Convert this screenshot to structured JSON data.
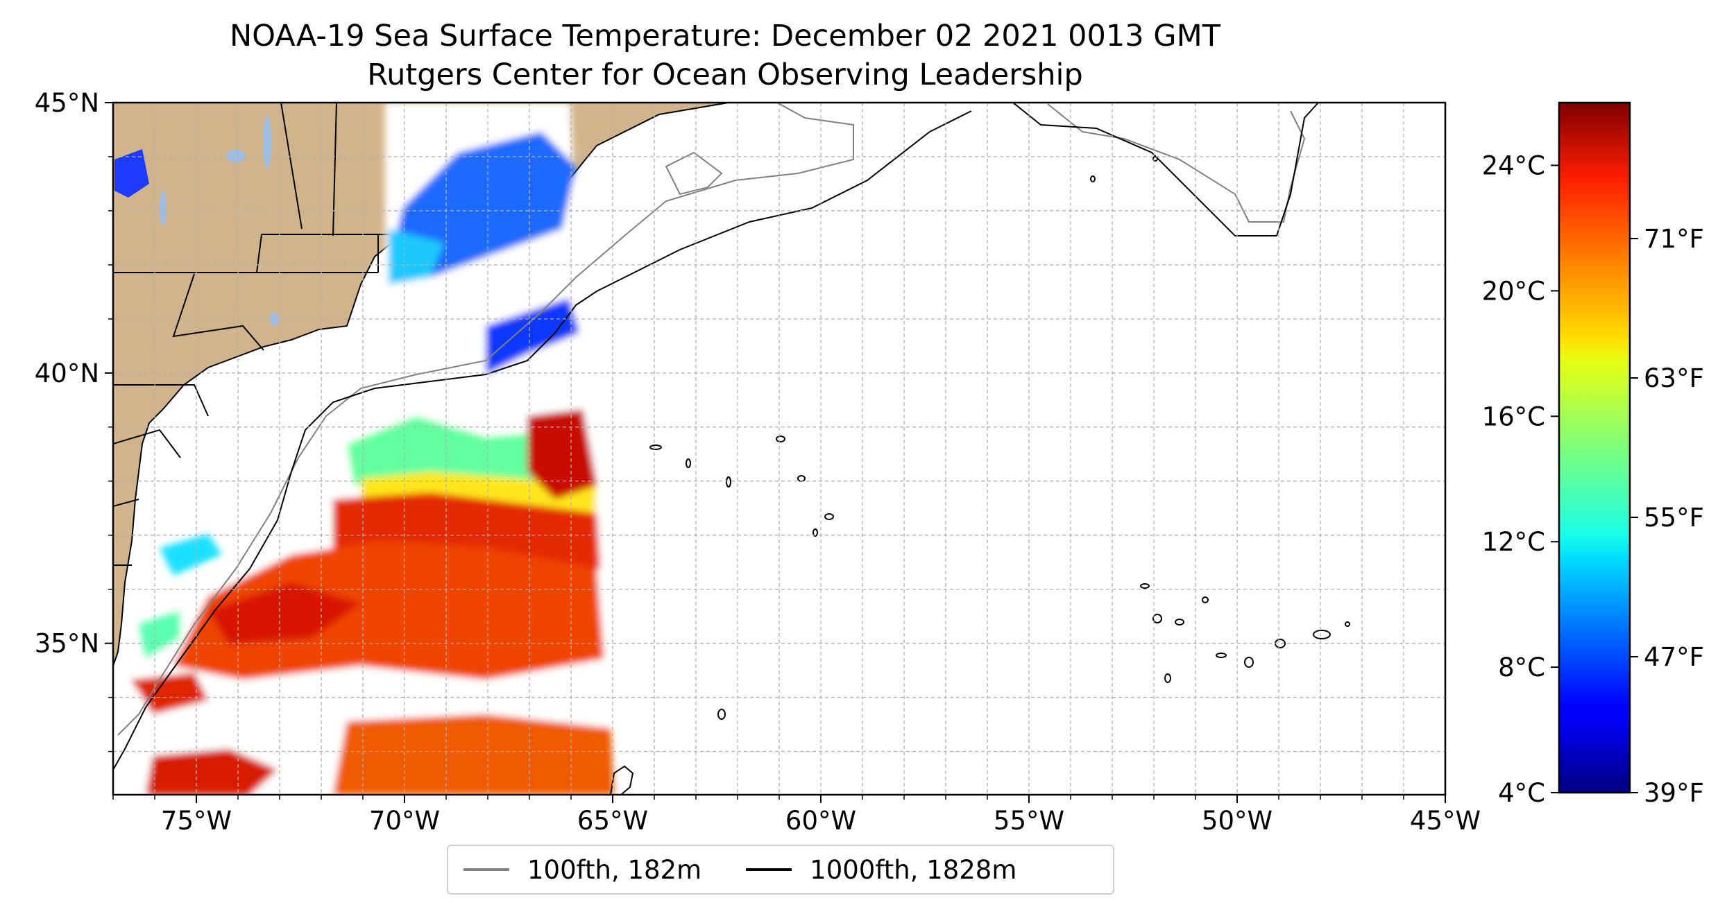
{
  "title": {
    "line1": "NOAA-19 Sea Surface Temperature: December 02 2021 0013 GMT",
    "line2": "Rutgers Center for Ocean Observing Leadership"
  },
  "map": {
    "lon_range": [
      -77,
      -45
    ],
    "lat_range": [
      32.2,
      45
    ],
    "lon_ticks": [
      {
        "value": -75,
        "label": "75°W"
      },
      {
        "value": -70,
        "label": "70°W"
      },
      {
        "value": -65,
        "label": "65°W"
      },
      {
        "value": -60,
        "label": "60°W"
      },
      {
        "value": -55,
        "label": "55°W"
      },
      {
        "value": -50,
        "label": "50°W"
      },
      {
        "value": -45,
        "label": "45°W"
      }
    ],
    "lat_ticks": [
      {
        "value": 45,
        "label": "45°N"
      },
      {
        "value": 40,
        "label": "40°N"
      },
      {
        "value": 35,
        "label": "35°N"
      }
    ],
    "grid": "dashed, 1-degree",
    "land_color": "#d2b48c",
    "lake_color": "#9bbde6"
  },
  "legend": {
    "items": [
      {
        "label": "100fth, 182m",
        "color": "#808080"
      },
      {
        "label": "1000fth, 1828m",
        "color": "#000000"
      }
    ]
  },
  "colorbar": {
    "colormap": "jet",
    "range_c": [
      4,
      26
    ],
    "celsius_ticks": [
      {
        "value": 24,
        "label": "24°C"
      },
      {
        "value": 20,
        "label": "20°C"
      },
      {
        "value": 16,
        "label": "16°C"
      },
      {
        "value": 12,
        "label": "12°C"
      },
      {
        "value": 8,
        "label": "8°C"
      },
      {
        "value": 4,
        "label": "4°C"
      }
    ],
    "fahrenheit_ticks": [
      {
        "value": 71,
        "label": "71°F"
      },
      {
        "value": 63,
        "label": "63°F"
      },
      {
        "value": 55,
        "label": "55°F"
      },
      {
        "value": 47,
        "label": "47°F"
      },
      {
        "value": 39,
        "label": "39°F"
      }
    ]
  }
}
